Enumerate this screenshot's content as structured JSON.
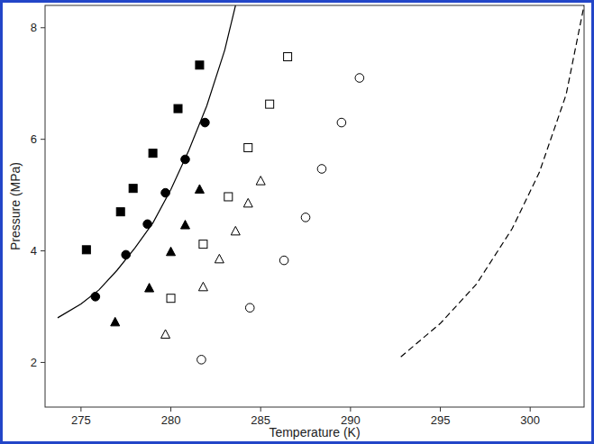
{
  "chart_data": {
    "type": "scatter",
    "x_label": "Temperature (K)",
    "y_label": "Pressure (MPa)",
    "xlim": [
      273,
      303
    ],
    "xticks": [
      275,
      280,
      285,
      290,
      295,
      300
    ],
    "ylim": [
      1.2,
      8.4
    ],
    "yticks": [
      2,
      4,
      6,
      8
    ],
    "grid": false,
    "tick_labels": true,
    "series": [
      {
        "type": "scatter",
        "marker": "filled-square",
        "color": "#000000",
        "x": [
          275.3,
          277.2,
          277.9,
          279.0,
          280.4,
          281.6
        ],
        "values": [
          4.02,
          4.7,
          5.12,
          5.75,
          6.55,
          7.33
        ]
      },
      {
        "type": "scatter",
        "marker": "filled-circle",
        "color": "#000000",
        "x": [
          275.8,
          277.5,
          278.7,
          279.7,
          280.8,
          281.9
        ],
        "values": [
          3.18,
          3.93,
          4.48,
          5.04,
          5.64,
          6.3
        ]
      },
      {
        "type": "scatter",
        "marker": "filled-triangle",
        "color": "#000000",
        "x": [
          276.9,
          278.8,
          280.0,
          280.8,
          281.6
        ],
        "values": [
          2.72,
          3.33,
          3.98,
          4.46,
          5.1
        ]
      },
      {
        "type": "scatter",
        "marker": "open-square",
        "color": "#000000",
        "x": [
          280.0,
          281.8,
          283.2,
          284.3,
          285.5,
          286.5
        ],
        "values": [
          3.15,
          4.12,
          4.97,
          5.85,
          6.63,
          7.48
        ]
      },
      {
        "type": "scatter",
        "marker": "open-triangle",
        "color": "#000000",
        "x": [
          279.7,
          281.8,
          282.7,
          283.6,
          284.3,
          285.0
        ],
        "values": [
          2.5,
          3.35,
          3.85,
          4.35,
          4.85,
          5.25
        ]
      },
      {
        "type": "scatter",
        "marker": "open-circle",
        "color": "#000000",
        "x": [
          281.7,
          284.4,
          286.3,
          287.5,
          288.4,
          289.5,
          290.5
        ],
        "values": [
          2.05,
          2.98,
          3.83,
          4.6,
          5.47,
          6.3,
          7.1
        ]
      },
      {
        "type": "line",
        "line_style": "solid",
        "color": "#000000",
        "x": [
          273.7,
          275,
          276,
          277,
          278,
          279,
          280,
          281,
          282,
          283,
          283.6
        ],
        "values": [
          2.8,
          3.05,
          3.3,
          3.65,
          4.05,
          4.5,
          5.1,
          5.8,
          6.6,
          7.6,
          8.4
        ]
      },
      {
        "type": "line",
        "line_style": "dashed",
        "color": "#000000",
        "x": [
          292.8,
          295,
          297,
          299,
          300.5,
          302,
          303
        ],
        "values": [
          2.1,
          2.7,
          3.4,
          4.4,
          5.4,
          6.8,
          8.4
        ]
      }
    ]
  }
}
